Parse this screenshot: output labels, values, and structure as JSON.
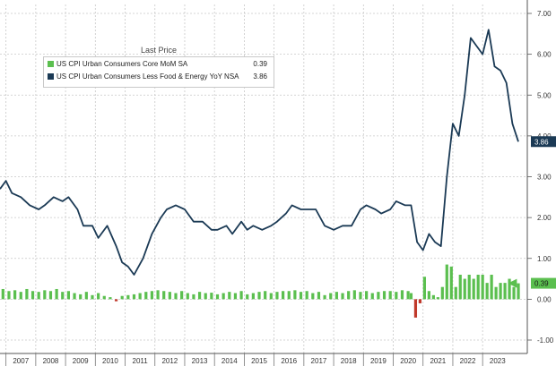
{
  "chart_data": {
    "type": "line",
    "legend": {
      "title": "Last Price",
      "placement": "top-left",
      "entries": [
        {
          "label": "US CPI Urban Consumers Core MoM SA",
          "last": "0.39",
          "color": "#5bbf4f"
        },
        {
          "label": "US CPI Urban Consumers Less Food & Energy YoY NSA",
          "last": "3.86",
          "color": "#1b3a55"
        }
      ]
    },
    "x_ticks": [
      "2007",
      "2008",
      "2009",
      "2010",
      "2011",
      "2012",
      "2013",
      "2014",
      "2015",
      "2016",
      "2017",
      "2018",
      "2019",
      "2020",
      "2021",
      "2022",
      "2023"
    ],
    "y_ticks": [
      "-1.00",
      "0.00",
      "1.00",
      "2.00",
      "3.00",
      "4.00",
      "5.00",
      "6.00",
      "7.00"
    ],
    "ylim": [
      -1,
      7
    ],
    "xlim": [
      2006.3,
      2024.0
    ],
    "grid": true,
    "last_value_labels": {
      "yoy": "3.86",
      "mom": "0.39"
    },
    "colors": {
      "yoy_line": "#1b3a55",
      "mom_bar": "#5bbf4f",
      "mom_negative": "#c0392b",
      "yoy_label_bg": "#1b3a55",
      "mom_label_bg": "#5bbf4f",
      "grid": "#c8c8c8"
    },
    "series": [
      {
        "name": "US CPI Urban Consumers Less Food & Energy YoY NSA",
        "type": "line",
        "x": [
          2006.3,
          2006.5,
          2006.7,
          2007.0,
          2007.3,
          2007.6,
          2007.8,
          2008.1,
          2008.4,
          2008.6,
          2008.9,
          2009.1,
          2009.4,
          2009.6,
          2009.9,
          2010.2,
          2010.4,
          2010.6,
          2010.8,
          2011.1,
          2011.4,
          2011.7,
          2011.9,
          2012.2,
          2012.5,
          2012.8,
          2013.1,
          2013.4,
          2013.6,
          2013.9,
          2014.1,
          2014.4,
          2014.6,
          2014.8,
          2015.1,
          2015.4,
          2015.6,
          2015.9,
          2016.1,
          2016.4,
          2016.6,
          2016.9,
          2017.2,
          2017.5,
          2017.8,
          2018.1,
          2018.4,
          2018.6,
          2018.9,
          2019.1,
          2019.4,
          2019.6,
          2019.9,
          2020.1,
          2020.3,
          2020.5,
          2020.7,
          2020.9,
          2021.1,
          2021.3,
          2021.5,
          2021.7,
          2021.9,
          2022.1,
          2022.3,
          2022.5,
          2022.7,
          2022.9,
          2023.1,
          2023.3,
          2023.5,
          2023.7
        ],
        "y": [
          2.7,
          2.9,
          2.6,
          2.5,
          2.3,
          2.2,
          2.3,
          2.5,
          2.4,
          2.5,
          2.2,
          1.8,
          1.8,
          1.5,
          1.8,
          1.3,
          0.9,
          0.8,
          0.6,
          1.0,
          1.6,
          2.0,
          2.2,
          2.3,
          2.2,
          1.9,
          1.9,
          1.7,
          1.7,
          1.8,
          1.6,
          1.9,
          1.7,
          1.8,
          1.7,
          1.8,
          1.9,
          2.1,
          2.3,
          2.2,
          2.2,
          2.2,
          1.8,
          1.7,
          1.8,
          1.8,
          2.2,
          2.3,
          2.2,
          2.1,
          2.2,
          2.4,
          2.3,
          2.3,
          1.4,
          1.2,
          1.6,
          1.4,
          1.3,
          3.0,
          4.3,
          4.0,
          5.0,
          6.4,
          6.2,
          6.0,
          6.6,
          5.7,
          5.6,
          5.3,
          4.3,
          3.86
        ]
      },
      {
        "name": "US CPI Urban Consumers Core MoM SA",
        "type": "bar",
        "x": [
          2006.4,
          2006.6,
          2006.8,
          2007.0,
          2007.2,
          2007.4,
          2007.6,
          2007.8,
          2008.0,
          2008.2,
          2008.4,
          2008.6,
          2008.8,
          2009.0,
          2009.2,
          2009.4,
          2009.6,
          2009.8,
          2010.0,
          2010.2,
          2010.4,
          2010.6,
          2010.8,
          2011.0,
          2011.2,
          2011.4,
          2011.6,
          2011.8,
          2012.0,
          2012.2,
          2012.4,
          2012.6,
          2012.8,
          2013.0,
          2013.2,
          2013.4,
          2013.6,
          2013.8,
          2014.0,
          2014.2,
          2014.4,
          2014.6,
          2014.8,
          2015.0,
          2015.2,
          2015.4,
          2015.6,
          2015.8,
          2016.0,
          2016.2,
          2016.4,
          2016.6,
          2016.8,
          2017.0,
          2017.2,
          2017.4,
          2017.6,
          2017.8,
          2018.0,
          2018.2,
          2018.4,
          2018.6,
          2018.8,
          2019.0,
          2019.2,
          2019.4,
          2019.6,
          2019.8,
          2020.0,
          2020.1,
          2020.25,
          2020.4,
          2020.55,
          2020.7,
          2020.85,
          2021.0,
          2021.15,
          2021.3,
          2021.45,
          2021.6,
          2021.75,
          2021.9,
          2022.05,
          2022.2,
          2022.35,
          2022.5,
          2022.65,
          2022.8,
          2022.95,
          2023.1,
          2023.25,
          2023.4,
          2023.55,
          2023.7
        ],
        "y": [
          0.25,
          0.2,
          0.22,
          0.18,
          0.25,
          0.2,
          0.18,
          0.22,
          0.2,
          0.25,
          0.18,
          0.2,
          0.15,
          0.12,
          0.18,
          0.1,
          0.15,
          0.08,
          0.05,
          -0.05,
          0.08,
          0.1,
          0.12,
          0.15,
          0.18,
          0.2,
          0.22,
          0.2,
          0.18,
          0.15,
          0.2,
          0.15,
          0.12,
          0.18,
          0.15,
          0.16,
          0.12,
          0.15,
          0.18,
          0.15,
          0.2,
          0.12,
          0.15,
          0.18,
          0.2,
          0.15,
          0.18,
          0.2,
          0.2,
          0.22,
          0.18,
          0.2,
          0.15,
          0.18,
          0.1,
          0.15,
          0.18,
          0.15,
          0.2,
          0.22,
          0.18,
          0.2,
          0.15,
          0.18,
          0.2,
          0.2,
          0.18,
          0.22,
          0.2,
          0.15,
          -0.45,
          -0.1,
          0.55,
          0.2,
          0.1,
          0.05,
          0.3,
          0.85,
          0.8,
          0.3,
          0.6,
          0.5,
          0.6,
          0.5,
          0.6,
          0.6,
          0.4,
          0.6,
          0.3,
          0.4,
          0.4,
          0.5,
          0.3,
          0.39
        ]
      }
    ]
  }
}
